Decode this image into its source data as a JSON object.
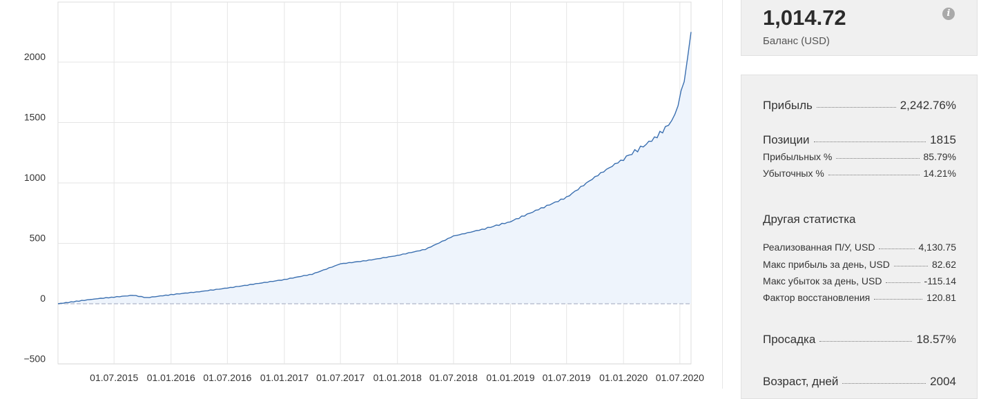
{
  "chart_data": {
    "type": "area",
    "title": "",
    "xlabel": "",
    "ylabel": "",
    "x_tick_labels": [
      "01.07.2015",
      "01.01.2016",
      "01.07.2016",
      "01.01.2017",
      "01.07.2017",
      "01.01.2018",
      "01.07.2018",
      "01.01.2019",
      "01.07.2019",
      "01.01.2020",
      "01.07.2020"
    ],
    "y_tick_labels": [
      "2000",
      "1500",
      "1000",
      "500",
      "0",
      "−500"
    ],
    "y_ticks": [
      2000,
      1500,
      1000,
      500,
      0,
      -500
    ],
    "ylim": [
      -500,
      2500
    ],
    "xlim": [
      "2015-01-01",
      "2020-08-06"
    ],
    "grid": true,
    "series": [
      {
        "color": "#3a6fb0",
        "points": [
          [
            "2015-01-01",
            0
          ],
          [
            "2015-03-01",
            20
          ],
          [
            "2015-05-01",
            40
          ],
          [
            "2015-07-01",
            55
          ],
          [
            "2015-09-01",
            70
          ],
          [
            "2015-10-15",
            50
          ],
          [
            "2016-01-01",
            75
          ],
          [
            "2016-04-01",
            100
          ],
          [
            "2016-07-01",
            130
          ],
          [
            "2016-10-01",
            165
          ],
          [
            "2017-01-01",
            200
          ],
          [
            "2017-04-01",
            245
          ],
          [
            "2017-07-01",
            330
          ],
          [
            "2017-10-01",
            360
          ],
          [
            "2018-01-01",
            400
          ],
          [
            "2018-04-01",
            450
          ],
          [
            "2018-07-01",
            560
          ],
          [
            "2018-10-01",
            615
          ],
          [
            "2019-01-01",
            680
          ],
          [
            "2019-04-01",
            780
          ],
          [
            "2019-07-01",
            880
          ],
          [
            "2019-10-01",
            1050
          ],
          [
            "2020-01-01",
            1200
          ],
          [
            "2020-04-01",
            1350
          ],
          [
            "2020-05-15",
            1450
          ],
          [
            "2020-06-15",
            1560
          ],
          [
            "2020-07-15",
            1850
          ],
          [
            "2020-08-06",
            2250
          ]
        ]
      }
    ]
  },
  "balance": {
    "value": "1,014.72",
    "label": "Баланс (USD)",
    "info_icon": "info-icon"
  },
  "stats": {
    "profit": {
      "label": "Прибыль",
      "value": "2,242.76%"
    },
    "positions": {
      "label": "Позиции",
      "value": "1815"
    },
    "profitable": {
      "label": "Прибыльных %",
      "value": "85.79%"
    },
    "losing": {
      "label": "Убыточных %",
      "value": "14.21%"
    },
    "other_title": "Другая статистка",
    "realized": {
      "label": "Реализованная П/У, USD",
      "value": "4,130.75"
    },
    "max_profit_day": {
      "label": "Макс прибыль за день, USD",
      "value": "82.62"
    },
    "max_loss_day": {
      "label": "Макс убыток за день, USD",
      "value": "-115.14"
    },
    "recovery": {
      "label": "Фактор восстановления",
      "value": "120.81"
    },
    "drawdown": {
      "label": "Просадка",
      "value": "18.57%"
    },
    "age": {
      "label": "Возраст, дней",
      "value": "2004"
    }
  }
}
